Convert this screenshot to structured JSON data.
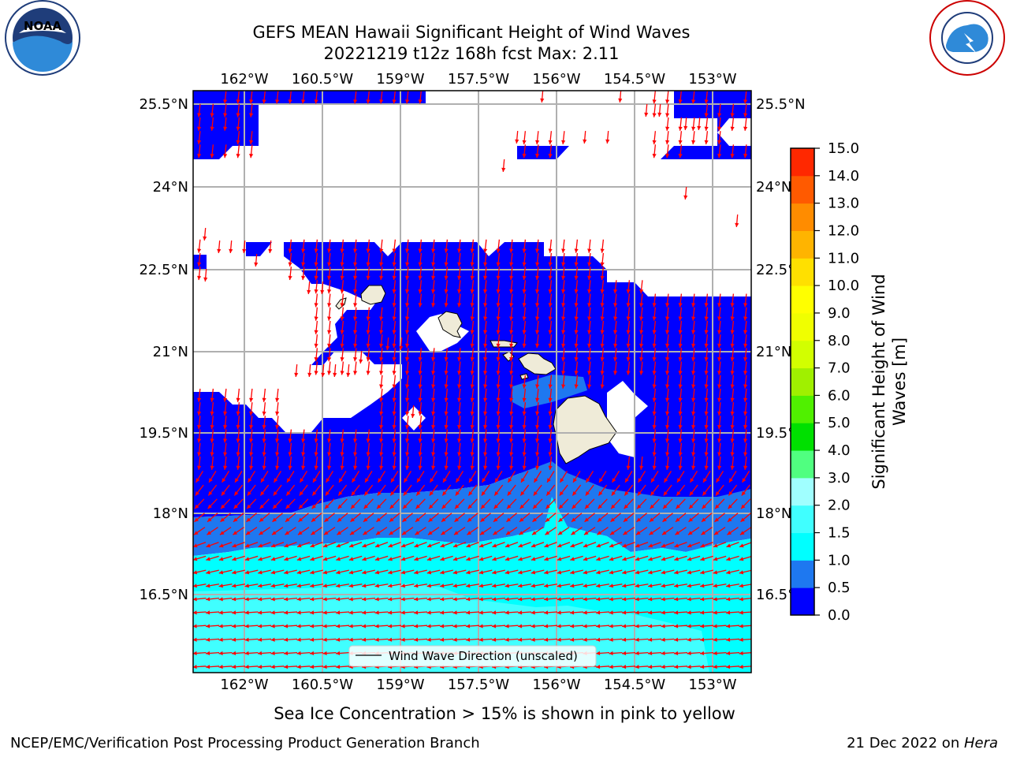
{
  "header": {
    "title_line1": "GEFS MEAN Hawaii Significant Height of Wind Waves",
    "title_line2": "20221219 t12z 168h fcst   Max: 2.11"
  },
  "logos": {
    "left": {
      "name": "noaa-logo",
      "text": "NOAA",
      "ring_text": "NATIONAL OCEANIC AND ATMOSPHERIC ADMINISTRATION · U.S. DEPARTMENT OF COMMERCE"
    },
    "right": {
      "name": "nws-logo",
      "ring_text": "NATIONAL WEATHER SERVICE"
    }
  },
  "map": {
    "lon_labels": [
      "162°W",
      "160.5°W",
      "159°W",
      "157.5°W",
      "156°W",
      "154.5°W",
      "153°W"
    ],
    "lat_labels": [
      "25.5°N",
      "24°N",
      "22.5°N",
      "21°N",
      "19.5°N",
      "18°N",
      "16.5°N"
    ],
    "legend_label": "Wind Wave Direction (unscaled)",
    "colors": {
      "land": "#efebd8",
      "arrow": "#ff0000",
      "grid": "#b0b0b0"
    }
  },
  "colorbar": {
    "label_line1": "Significant Height of Wind",
    "label_line2": "Waves [m]",
    "ticks": [
      "0.0",
      "0.5",
      "1.0",
      "1.5",
      "2.0",
      "3.0",
      "4.0",
      "5.0",
      "6.0",
      "7.0",
      "8.0",
      "9.0",
      "10.0",
      "11.0",
      "12.0",
      "13.0",
      "14.0",
      "15.0"
    ],
    "colors": [
      "#0000ff",
      "#1e78f0",
      "#00ffff",
      "#40ffff",
      "#a0ffff",
      "#50ff80",
      "#00e000",
      "#50f000",
      "#a0f000",
      "#d2ff00",
      "#f0ff00",
      "#ffff00",
      "#ffe000",
      "#ffb400",
      "#ff8c00",
      "#ff5a00",
      "#ff2800",
      "#ff0000"
    ]
  },
  "notes": {
    "sea_ice": "Sea Ice Concentration > 15% is shown in pink to yellow"
  },
  "footer": {
    "left": "NCEP/EMC/Verification Post Processing Product Generation Branch",
    "date": "21 Dec 2022 on ",
    "machine": "Hera"
  }
}
